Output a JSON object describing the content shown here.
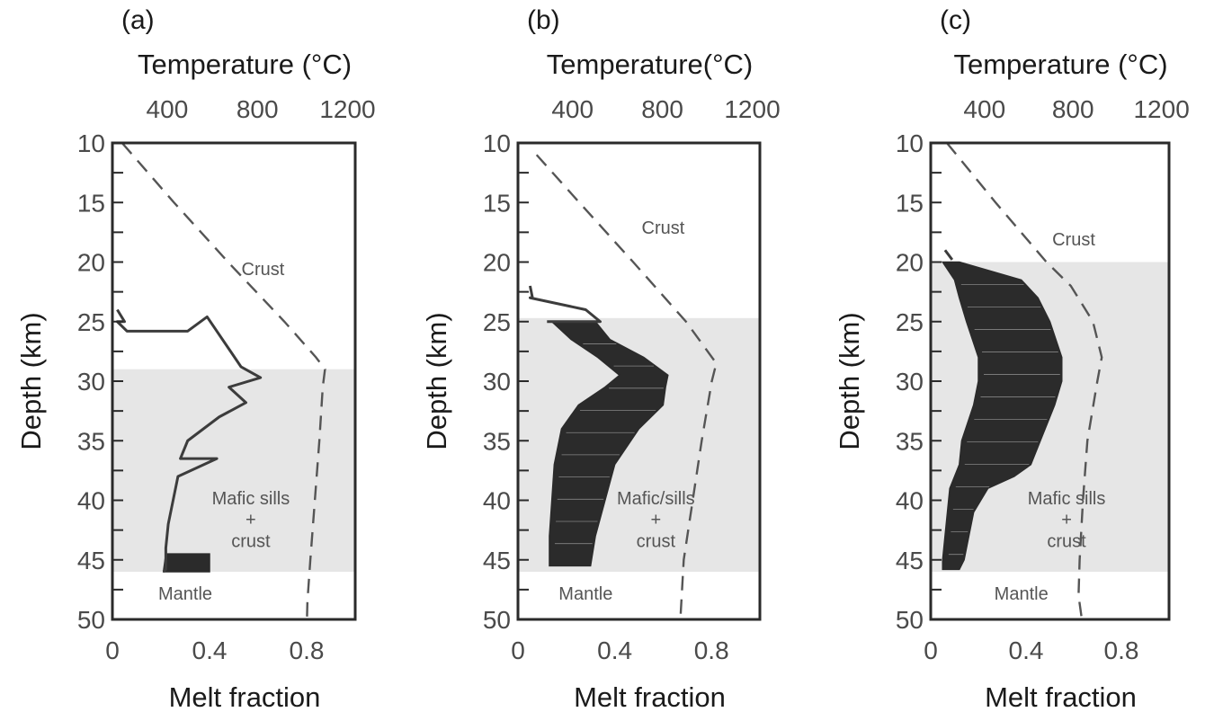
{
  "colors": {
    "axis": "#2a2a2a",
    "melt_line": "#3c3c3c",
    "melt_fill": "#2b2b2b",
    "geotherm": "#555555",
    "sill_zone": "#e6e6e6"
  },
  "chart_data": [
    {
      "panel": "(a)",
      "type": "line",
      "top_axis_title": "Temperature (°C)",
      "bottom_axis_title": "Melt fraction",
      "y_axis_title": "Depth (km)",
      "top_ticks": [
        "400",
        "800",
        "1200"
      ],
      "top_tick_values": [
        400,
        800,
        1200
      ],
      "bottom_ticks": [
        "0",
        "0.4",
        "0.8"
      ],
      "bottom_tick_values": [
        0,
        0.4,
        0.8
      ],
      "y_ticks": [
        "10",
        "15",
        "20",
        "25",
        "30",
        "35",
        "40",
        "45",
        "50"
      ],
      "y_tick_values": [
        10,
        15,
        20,
        25,
        30,
        35,
        40,
        45,
        50
      ],
      "ylim": [
        10,
        50
      ],
      "xlim_melt": [
        0,
        1
      ],
      "xlim_temp": [
        157,
        1234
      ],
      "sill_zone_depth": [
        29,
        46
      ],
      "labels": {
        "upper": "Crust",
        "middle": [
          "Mafic sills",
          "+",
          "crust"
        ],
        "lower": "Mantle"
      },
      "geotherm": {
        "depth": [
          10,
          15,
          20,
          25,
          28,
          29,
          30.5,
          35,
          40,
          45,
          48.5,
          50
        ],
        "temperature": [
          200,
          430,
          670,
          920,
          1060,
          1100,
          1090,
          1075,
          1055,
          1035,
          1022,
          1020
        ]
      },
      "melt_profile": {
        "depth": [
          24,
          25,
          25,
          25.8,
          25.8,
          24.6,
          28.8,
          29.7,
          30.5,
          31.8,
          33,
          35,
          36.5,
          36.5,
          38,
          40,
          42,
          44,
          45,
          45.8,
          46
        ],
        "melt_fraction": [
          0.02,
          0.05,
          0.02,
          0.06,
          0.31,
          0.39,
          0.53,
          0.61,
          0.48,
          0.55,
          0.44,
          0.31,
          0.28,
          0.43,
          0.27,
          0.25,
          0.23,
          0.22,
          0.22,
          0.22,
          0.21
        ]
      },
      "melt_shaded": {
        "depth": [
          44.5,
          46
        ],
        "melt_right": [
          0.4,
          0.4
        ],
        "melt_left": [
          0.22,
          0.21
        ]
      }
    },
    {
      "panel": "(b)",
      "type": "line",
      "top_axis_title": "Temperature(°C)",
      "bottom_axis_title": "Melt fraction",
      "y_axis_title": "Depth (km)",
      "top_ticks": [
        "400",
        "800",
        "1200"
      ],
      "top_tick_values": [
        400,
        800,
        1200
      ],
      "bottom_ticks": [
        "0",
        "0.4",
        "0.8"
      ],
      "bottom_tick_values": [
        0,
        0.4,
        0.8
      ],
      "y_ticks": [
        "10",
        "15",
        "20",
        "25",
        "30",
        "35",
        "40",
        "45",
        "50"
      ],
      "y_tick_values": [
        10,
        15,
        20,
        25,
        30,
        35,
        40,
        45,
        50
      ],
      "ylim": [
        10,
        50
      ],
      "xlim_melt": [
        0,
        1
      ],
      "xlim_temp": [
        157,
        1234
      ],
      "sill_zone_depth": [
        24.7,
        46
      ],
      "labels": {
        "upper": "Crust",
        "middle": [
          "Mafic/sills",
          "+",
          "crust"
        ],
        "lower": "Mantle"
      },
      "geotherm": {
        "depth": [
          11,
          15,
          20,
          25,
          28.5,
          30,
          35,
          40,
          45,
          50
        ],
        "temperature": [
          240,
          430,
          670,
          905,
          1040,
          1020,
          975,
          935,
          895,
          880
        ]
      },
      "melt_profile": {
        "depth": [
          22,
          23,
          23,
          24,
          25,
          25
        ],
        "melt_fraction": [
          0.05,
          0.06,
          0.05,
          0.28,
          0.34,
          0.12
        ]
      },
      "melt_shaded": {
        "depth": [
          25,
          26.5,
          28,
          29.5,
          30.5,
          32,
          34,
          37,
          40,
          43,
          45.5
        ],
        "melt_right": [
          0.32,
          0.38,
          0.52,
          0.62,
          0.61,
          0.6,
          0.5,
          0.4,
          0.36,
          0.32,
          0.3
        ],
        "melt_left": [
          0.14,
          0.22,
          0.33,
          0.42,
          0.36,
          0.25,
          0.18,
          0.15,
          0.14,
          0.13,
          0.13
        ]
      }
    },
    {
      "panel": "(c)",
      "type": "line",
      "top_axis_title": "Temperature (°C)",
      "bottom_axis_title": "Melt fraction",
      "y_axis_title": "Depth (km)",
      "top_ticks": [
        "400",
        "800",
        "1200"
      ],
      "top_tick_values": [
        400,
        800,
        1200
      ],
      "bottom_ticks": [
        "0",
        "0.4",
        "0.8"
      ],
      "bottom_tick_values": [
        0,
        0.4,
        0.8
      ],
      "y_ticks": [
        "10",
        "15",
        "20",
        "25",
        "30",
        "35",
        "40",
        "45",
        "50"
      ],
      "y_tick_values": [
        10,
        15,
        20,
        25,
        30,
        35,
        40,
        45,
        50
      ],
      "ylim": [
        10,
        50
      ],
      "xlim_melt": [
        0,
        1
      ],
      "xlim_temp": [
        157,
        1234
      ],
      "sill_zone_depth": [
        20,
        46
      ],
      "labels": {
        "upper": "Crust",
        "middle": [
          "Mafic sills",
          "+",
          "crust"
        ],
        "lower": "Mantle"
      },
      "geotherm": {
        "depth": [
          10,
          15,
          20,
          22,
          25,
          28,
          30,
          35,
          40,
          45,
          48,
          50
        ],
        "temperature": [
          230,
          450,
          680,
          790,
          890,
          930,
          910,
          865,
          845,
          830,
          825,
          840
        ]
      },
      "melt_profile": {
        "depth": [
          19,
          19.8
        ],
        "melt_fraction": [
          0.06,
          0.09
        ]
      },
      "melt_shaded": {
        "depth": [
          20,
          21.5,
          23,
          25,
          28,
          30,
          32,
          35,
          37,
          38,
          39,
          41,
          43,
          45,
          45.8
        ],
        "melt_right": [
          0.12,
          0.38,
          0.45,
          0.5,
          0.55,
          0.55,
          0.52,
          0.46,
          0.42,
          0.35,
          0.24,
          0.18,
          0.16,
          0.14,
          0.12
        ],
        "melt_left": [
          0.05,
          0.1,
          0.12,
          0.15,
          0.2,
          0.2,
          0.18,
          0.13,
          0.12,
          0.1,
          0.08,
          0.07,
          0.06,
          0.05,
          0.05
        ]
      }
    }
  ]
}
